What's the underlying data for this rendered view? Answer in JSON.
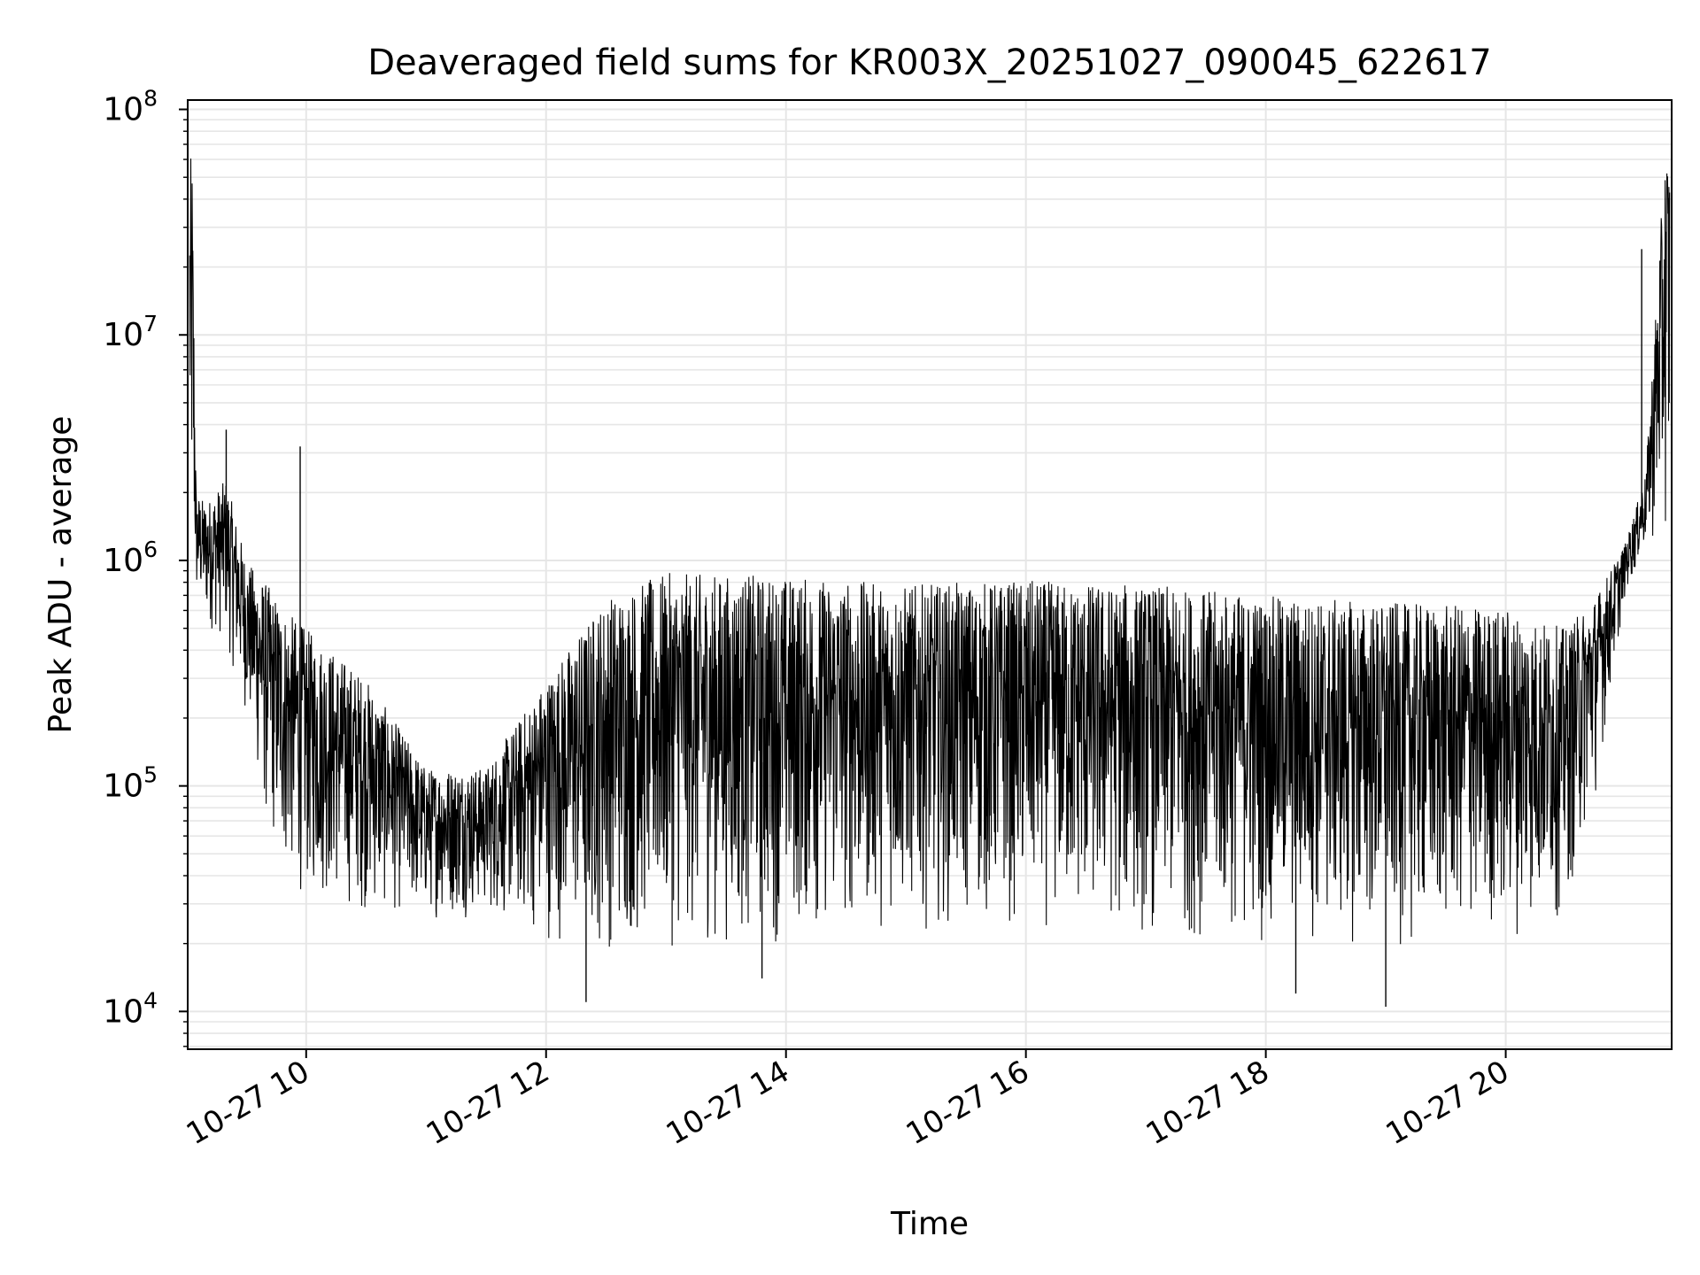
{
  "chart_data": {
    "type": "line",
    "title": "Deaveraged field sums for KR003X_20251027_090045_622617",
    "xlabel": "Time",
    "ylabel": "Peak ADU - average",
    "y_scale": "log",
    "ylim": [
      6800,
      110000000
    ],
    "xlim": [
      "2025-10-27 09:00:45",
      "2025-10-27 21:23:00"
    ],
    "x_ticks": [
      {
        "value": "2025-10-27 10:00",
        "label": "10-27 10"
      },
      {
        "value": "2025-10-27 12:00",
        "label": "10-27 12"
      },
      {
        "value": "2025-10-27 14:00",
        "label": "10-27 14"
      },
      {
        "value": "2025-10-27 16:00",
        "label": "10-27 16"
      },
      {
        "value": "2025-10-27 18:00",
        "label": "10-27 18"
      },
      {
        "value": "2025-10-27 20:00",
        "label": "10-27 20"
      }
    ],
    "y_ticks": [
      {
        "value": 10000,
        "base": "10",
        "exp": "4"
      },
      {
        "value": 100000,
        "base": "10",
        "exp": "5"
      },
      {
        "value": 1000000,
        "base": "10",
        "exp": "6"
      },
      {
        "value": 10000000,
        "base": "10",
        "exp": "7"
      },
      {
        "value": 100000000,
        "base": "10",
        "exp": "8"
      }
    ],
    "grid": true,
    "line_color": "#000000",
    "grid_color": "#e6e6e6",
    "series": [
      {
        "envelope": [
          {
            "x": "2025-10-27 09:01",
            "low": 900000,
            "high": 55000000
          },
          {
            "x": "2025-10-27 09:03",
            "low": 700000,
            "high": 65000000
          },
          {
            "x": "2025-10-27 09:05",
            "low": 600000,
            "high": 2000000
          },
          {
            "x": "2025-10-27 09:10",
            "low": 500000,
            "high": 1800000
          },
          {
            "x": "2025-10-27 09:20",
            "low": 400000,
            "high": 2300000
          },
          {
            "x": "2025-10-27 09:30",
            "low": 200000,
            "high": 1000000
          },
          {
            "x": "2025-10-27 09:40",
            "low": 60000,
            "high": 800000
          },
          {
            "x": "2025-10-27 09:50",
            "low": 35000,
            "high": 600000
          },
          {
            "x": "2025-10-27 10:00",
            "low": 30000,
            "high": 500000
          },
          {
            "x": "2025-10-27 10:30",
            "low": 26000,
            "high": 300000
          },
          {
            "x": "2025-10-27 11:00",
            "low": 25000,
            "high": 120000
          },
          {
            "x": "2025-10-27 11:30",
            "low": 26000,
            "high": 120000
          },
          {
            "x": "2025-10-27 12:00",
            "low": 20000,
            "high": 300000
          },
          {
            "x": "2025-10-27 12:30",
            "low": 17000,
            "high": 700000
          },
          {
            "x": "2025-10-27 13:00",
            "low": 18000,
            "high": 880000
          },
          {
            "x": "2025-10-27 14:00",
            "low": 19000,
            "high": 860000
          },
          {
            "x": "2025-10-27 15:00",
            "low": 23000,
            "high": 780000
          },
          {
            "x": "2025-10-27 16:00",
            "low": 22000,
            "high": 820000
          },
          {
            "x": "2025-10-27 17:00",
            "low": 20000,
            "high": 780000
          },
          {
            "x": "2025-10-27 18:00",
            "low": 19000,
            "high": 700000
          },
          {
            "x": "2025-10-27 19:00",
            "low": 18000,
            "high": 650000
          },
          {
            "x": "2025-10-27 20:00",
            "low": 20000,
            "high": 620000
          },
          {
            "x": "2025-10-27 20:30",
            "low": 25000,
            "high": 500000
          },
          {
            "x": "2025-10-27 20:45",
            "low": 90000,
            "high": 700000
          },
          {
            "x": "2025-10-27 21:00",
            "low": 700000,
            "high": 1200000
          },
          {
            "x": "2025-10-27 21:10",
            "low": 1100000,
            "high": 2400000
          },
          {
            "x": "2025-10-27 21:20",
            "low": 1200000,
            "high": 70000000
          }
        ],
        "spikes": [
          {
            "x": "2025-10-27 09:20",
            "y": 3800000
          },
          {
            "x": "2025-10-27 09:57",
            "y": 3200000
          },
          {
            "x": "2025-10-27 12:20",
            "y": 11000
          },
          {
            "x": "2025-10-27 13:48",
            "y": 14000
          },
          {
            "x": "2025-10-27 18:15",
            "y": 12000
          },
          {
            "x": "2025-10-27 19:00",
            "y": 10500
          },
          {
            "x": "2025-10-27 21:08",
            "y": 24000000
          }
        ]
      }
    ]
  }
}
